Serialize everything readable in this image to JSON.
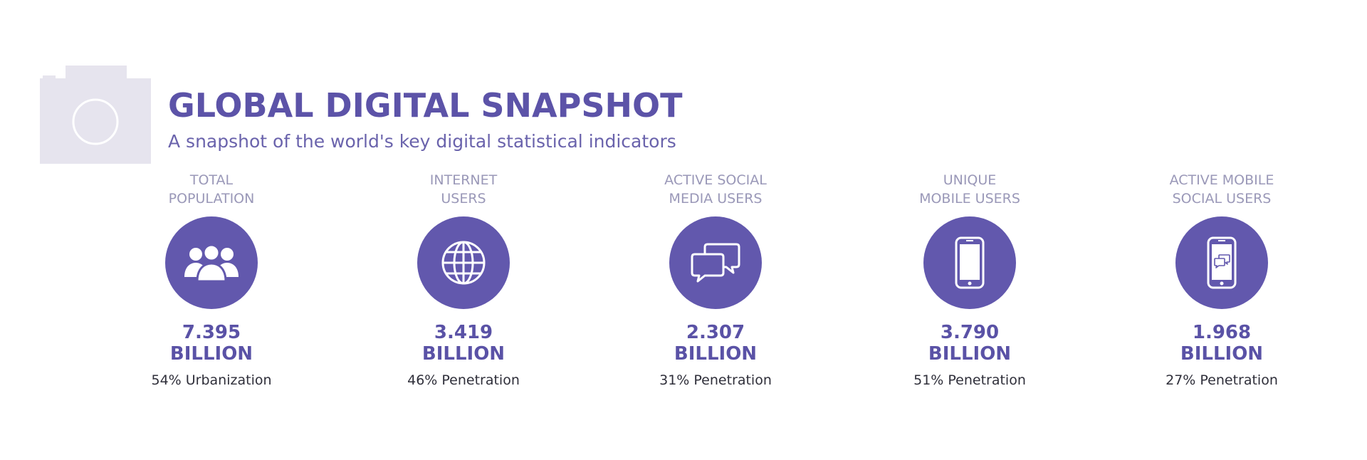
{
  "header": {
    "title": "GLOBAL DIGITAL SNAPSHOT",
    "subtitle": "A snapshot of the world's key digital statistical indicators"
  },
  "colors": {
    "accent": "#6258ad",
    "title": "#5c53a8",
    "label": "#9a98b8",
    "note": "#2f2f3a"
  },
  "stats": [
    {
      "label_line1": "TOTAL",
      "label_line2": "POPULATION",
      "icon": "people-icon",
      "value": "7.395",
      "unit": "BILLION",
      "note": "54% Urbanization"
    },
    {
      "label_line1": "INTERNET",
      "label_line2": "USERS",
      "icon": "globe-icon",
      "value": "3.419",
      "unit": "BILLION",
      "note": "46% Penetration"
    },
    {
      "label_line1": "ACTIVE SOCIAL",
      "label_line2": "MEDIA USERS",
      "icon": "chat-bubbles-icon",
      "value": "2.307",
      "unit": "BILLION",
      "note": "31% Penetration"
    },
    {
      "label_line1": "UNIQUE",
      "label_line2": "MOBILE USERS",
      "icon": "mobile-phone-icon",
      "value": "3.790",
      "unit": "BILLION",
      "note": "51% Penetration"
    },
    {
      "label_line1": "ACTIVE MOBILE",
      "label_line2": "SOCIAL USERS",
      "icon": "mobile-chat-icon",
      "value": "1.968",
      "unit": "BILLION",
      "note": "27% Penetration"
    }
  ]
}
